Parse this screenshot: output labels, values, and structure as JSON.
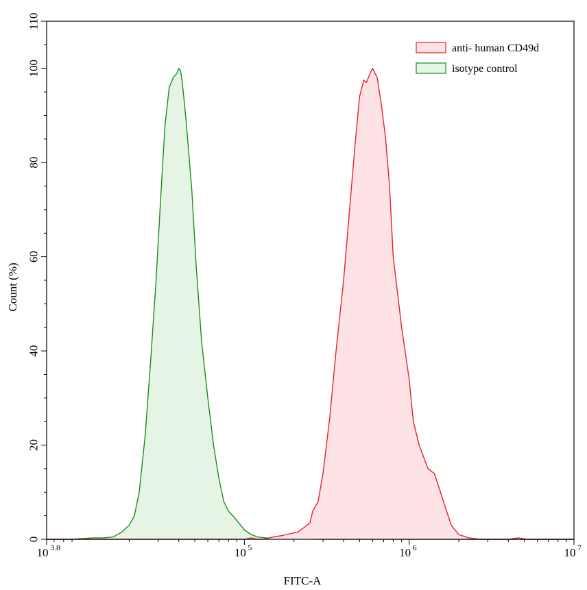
{
  "chart_data": {
    "type": "area",
    "title": "",
    "xlabel": "FITC-A",
    "ylabel": "Count  (%)",
    "xscale": "log",
    "xlim": [
      6310,
      10000000
    ],
    "ylim": [
      0,
      110
    ],
    "x_ticks": [
      {
        "base": "10",
        "exponent": "3.8"
      },
      {
        "base": "10",
        "exponent": "5"
      },
      {
        "base": "10",
        "exponent": "6"
      },
      {
        "base": "10",
        "exponent": "7"
      }
    ],
    "y_ticks": [
      "0",
      "20",
      "40",
      "60",
      "80",
      "100",
      "110"
    ],
    "grid": false,
    "legend_position": "top-right",
    "series": [
      {
        "name": "anti- human CD49d",
        "stroke": "#e8202a",
        "fill": "#fde3e6",
        "x": [
          6310,
          10000,
          20000,
          40000,
          70000,
          100000,
          110000,
          120000,
          130000,
          150000,
          170000,
          190000,
          210000,
          230000,
          250000,
          260000,
          280000,
          300000,
          330000,
          360000,
          400000,
          430000,
          470000,
          500000,
          530000,
          550000,
          580000,
          600000,
          640000,
          680000,
          720000,
          760000,
          800000,
          900000,
          1000000,
          1060000,
          1150000,
          1300000,
          1420000,
          1550000,
          1650000,
          1800000,
          2000000,
          2300000,
          2700000,
          3000000,
          4000000,
          4600000,
          5200000,
          7000000,
          9000000,
          10000000
        ],
        "y": [
          0,
          0,
          0,
          0,
          0,
          0,
          0.3,
          0,
          0,
          0.5,
          0.8,
          1.2,
          1.5,
          2.5,
          3.5,
          6,
          8,
          14,
          26,
          40,
          55,
          68,
          84,
          94,
          97.5,
          97,
          99,
          100,
          98,
          92,
          85,
          75,
          60,
          45,
          34,
          25,
          20,
          15,
          14,
          10,
          7,
          3,
          1,
          0.3,
          0,
          0,
          0,
          0.3,
          0,
          0,
          0,
          0
        ]
      },
      {
        "name": "isotype control",
        "stroke": "#1e8a1e",
        "fill": "#e6f4e6",
        "x": [
          6310,
          9000,
          12000,
          14000,
          16000,
          18000,
          20000,
          21500,
          23000,
          25000,
          27000,
          29000,
          31000,
          33000,
          35000,
          37000,
          39000,
          40000,
          41000,
          42000,
          44000,
          46000,
          48000,
          51000,
          55000,
          60000,
          65000,
          70000,
          75000,
          80000,
          85000,
          90000,
          100000,
          110000,
          120000,
          135000,
          150000,
          170000,
          200000,
          300000,
          500000,
          1000000,
          3000000,
          10000000
        ],
        "y": [
          0,
          0,
          0.3,
          0.3,
          0.5,
          1.5,
          3,
          5,
          10,
          22,
          38,
          54,
          72,
          88,
          96,
          98,
          99,
          100,
          99.5,
          97,
          90,
          82,
          74,
          58,
          42,
          30,
          20,
          13,
          8,
          6,
          5,
          4,
          2,
          1,
          0.5,
          0.3,
          0.2,
          0.1,
          0.1,
          0,
          0,
          0,
          0,
          0
        ]
      }
    ]
  }
}
